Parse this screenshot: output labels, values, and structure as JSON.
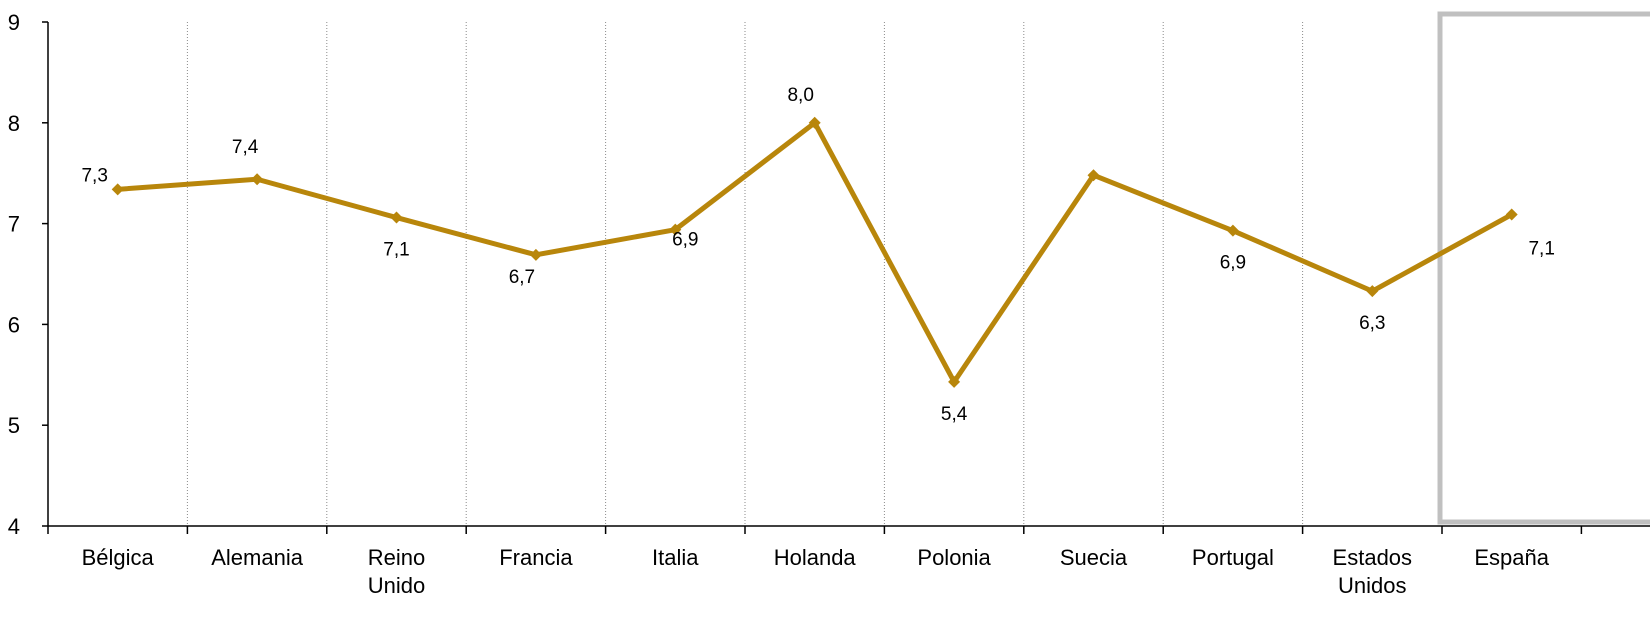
{
  "chart_data": {
    "type": "line",
    "title": "",
    "xlabel": "",
    "ylabel": "",
    "ylim": [
      4,
      9
    ],
    "yticks": [
      "4",
      "5",
      "6",
      "7",
      "8",
      "9"
    ],
    "categories": [
      [
        "Bélgica"
      ],
      [
        "Alemania"
      ],
      [
        "Reino",
        "Unido"
      ],
      [
        "Francia"
      ],
      [
        "Italia"
      ],
      [
        "Holanda"
      ],
      [
        "Polonia"
      ],
      [
        "Suecia"
      ],
      [
        "Portugal"
      ],
      [
        "Estados",
        "Unidos"
      ],
      [
        "España"
      ]
    ],
    "values": [
      7.34,
      7.44,
      7.06,
      6.69,
      6.94,
      8.0,
      5.43,
      7.48,
      6.93,
      6.33,
      7.09
    ],
    "data_labels": [
      "7,3",
      "7,4",
      "7,1",
      "6,7",
      "6,9",
      "8,0",
      "5,4",
      "",
      "6,9",
      "6,3",
      "7,1"
    ],
    "grid": "vertical-dotted",
    "line_color": "#B8860B",
    "highlight_category": "España",
    "highlight_color": "#C0C0C0"
  }
}
